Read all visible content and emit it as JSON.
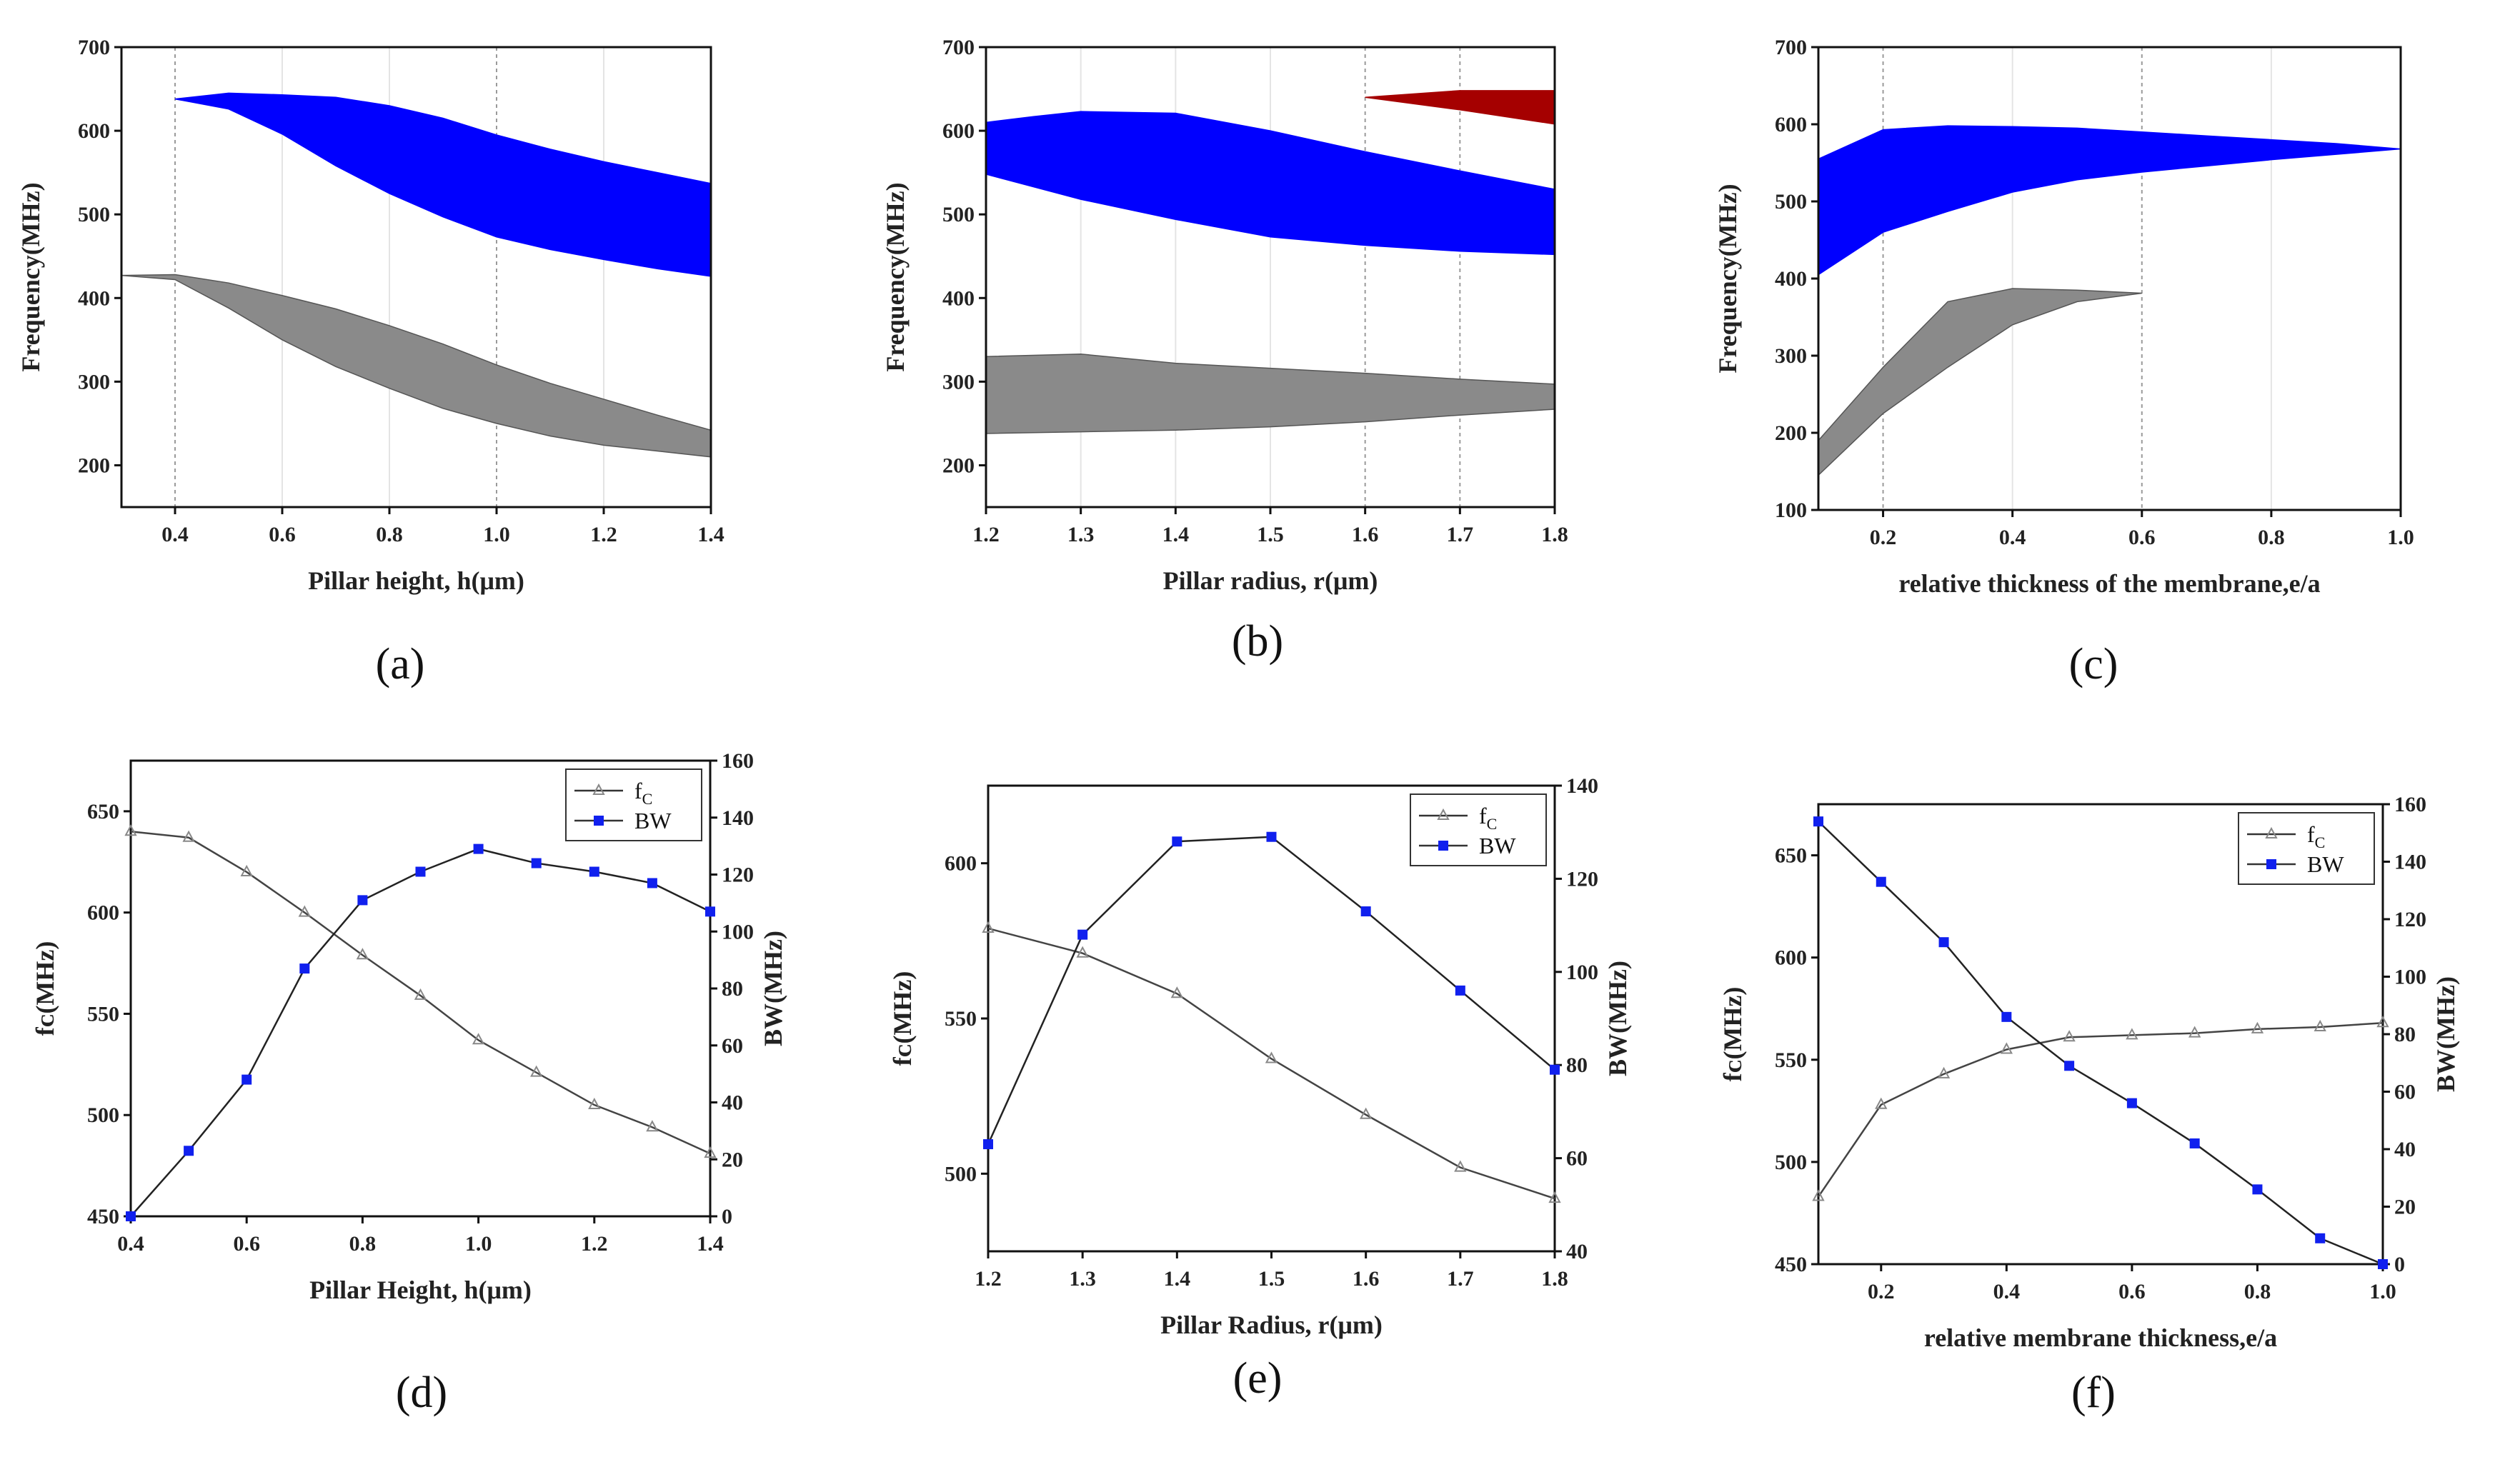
{
  "captions": [
    "(a)",
    "(b)",
    "(c)",
    "(d)",
    "(e)",
    "(f)"
  ],
  "colors": {
    "blue_band": "#0000ff",
    "gray_band": "#8a8a8a",
    "red_band": "#a50000",
    "blue_marker": "#1020ee",
    "gray_marker": "#888888"
  },
  "chart_data": [
    {
      "panel": "a",
      "type": "area",
      "caption": "(a)",
      "xlabel": "Pillar height, h(μm)",
      "ylabel": "Frequency(MHz)",
      "xlim": [
        0.3,
        1.4
      ],
      "ylim": [
        150,
        700
      ],
      "xticks": [
        "0.4",
        "0.6",
        "0.8",
        "1.0",
        "1.2",
        "1.4"
      ],
      "yticks": [
        "200",
        "300",
        "400",
        "500",
        "600",
        "700"
      ],
      "gridlines_x": [
        0.4,
        1.0
      ],
      "bands": [
        {
          "color": "blue",
          "upper": [
            [
              0.4,
              638
            ],
            [
              0.5,
              645
            ],
            [
              0.6,
              643
            ],
            [
              0.7,
              640
            ],
            [
              0.8,
              630
            ],
            [
              0.9,
              615
            ],
            [
              1.0,
              595
            ],
            [
              1.1,
              578
            ],
            [
              1.2,
              563
            ],
            [
              1.3,
              550
            ],
            [
              1.4,
              537
            ]
          ],
          "lower": [
            [
              0.4,
              638
            ],
            [
              0.5,
              626
            ],
            [
              0.6,
              596
            ],
            [
              0.7,
              558
            ],
            [
              0.8,
              525
            ],
            [
              0.9,
              497
            ],
            [
              1.0,
              473
            ],
            [
              1.1,
              458
            ],
            [
              1.2,
              446
            ],
            [
              1.3,
              435
            ],
            [
              1.4,
              426
            ]
          ]
        },
        {
          "color": "gray",
          "upper": [
            [
              0.3,
              427
            ],
            [
              0.4,
              428
            ],
            [
              0.5,
              418
            ],
            [
              0.6,
              403
            ],
            [
              0.7,
              387
            ],
            [
              0.8,
              367
            ],
            [
              0.9,
              345
            ],
            [
              1.0,
              320
            ],
            [
              1.1,
              298
            ],
            [
              1.2,
              279
            ],
            [
              1.3,
              260
            ],
            [
              1.4,
              242
            ]
          ],
          "lower": [
            [
              0.3,
              427
            ],
            [
              0.4,
              422
            ],
            [
              0.5,
              388
            ],
            [
              0.6,
              350
            ],
            [
              0.7,
              318
            ],
            [
              0.8,
              292
            ],
            [
              0.9,
              268
            ],
            [
              1.0,
              250
            ],
            [
              1.1,
              235
            ],
            [
              1.2,
              224
            ],
            [
              1.3,
              217
            ],
            [
              1.4,
              210
            ]
          ]
        }
      ]
    },
    {
      "panel": "b",
      "type": "area",
      "caption": "(b)",
      "xlabel": "Pillar radius, r(μm)",
      "ylabel": "Frequency(MHz)",
      "xlim": [
        1.2,
        1.8
      ],
      "ylim": [
        150,
        700
      ],
      "xticks": [
        "1.2",
        "1.3",
        "1.4",
        "1.5",
        "1.6",
        "1.7",
        "1.8"
      ],
      "yticks": [
        "200",
        "300",
        "400",
        "500",
        "600",
        "700"
      ],
      "gridlines_x": [
        1.6,
        1.7
      ],
      "bands": [
        {
          "color": "blue",
          "upper": [
            [
              1.2,
              610
            ],
            [
              1.25,
              617
            ],
            [
              1.3,
              623
            ],
            [
              1.4,
              621
            ],
            [
              1.5,
              600
            ],
            [
              1.6,
              575
            ],
            [
              1.7,
              552
            ],
            [
              1.8,
              530
            ]
          ],
          "lower": [
            [
              1.2,
              548
            ],
            [
              1.3,
              518
            ],
            [
              1.4,
              494
            ],
            [
              1.5,
              473
            ],
            [
              1.6,
              463
            ],
            [
              1.7,
              456
            ],
            [
              1.8,
              452
            ]
          ]
        },
        {
          "color": "gray",
          "upper": [
            [
              1.2,
              330
            ],
            [
              1.3,
              333
            ],
            [
              1.4,
              322
            ],
            [
              1.5,
              316
            ],
            [
              1.6,
              310
            ],
            [
              1.7,
              303
            ],
            [
              1.8,
              297
            ]
          ],
          "lower": [
            [
              1.2,
              238
            ],
            [
              1.3,
              240
            ],
            [
              1.4,
              242
            ],
            [
              1.5,
              246
            ],
            [
              1.6,
              252
            ],
            [
              1.7,
              260
            ],
            [
              1.8,
              267
            ]
          ]
        },
        {
          "color": "red",
          "upper": [
            [
              1.6,
              640
            ],
            [
              1.7,
              648
            ],
            [
              1.8,
              648
            ]
          ],
          "lower": [
            [
              1.6,
              640
            ],
            [
              1.7,
              625
            ],
            [
              1.8,
              608
            ]
          ]
        }
      ]
    },
    {
      "panel": "c",
      "type": "area",
      "caption": "(c)",
      "xlabel": "relative thickness of the membrane,e/a",
      "ylabel": "Frequency(MHz)",
      "xlim": [
        0.1,
        1.0
      ],
      "ylim": [
        100,
        700
      ],
      "xticks": [
        "0.2",
        "0.4",
        "0.6",
        "0.8",
        "1.0"
      ],
      "yticks": [
        "100",
        "200",
        "300",
        "400",
        "500",
        "600",
        "700"
      ],
      "gridlines_x": [
        0.2,
        0.6
      ],
      "bands": [
        {
          "color": "blue",
          "upper": [
            [
              0.1,
              555
            ],
            [
              0.2,
              593
            ],
            [
              0.3,
              598
            ],
            [
              0.4,
              597
            ],
            [
              0.5,
              595
            ],
            [
              0.6,
              590
            ],
            [
              0.7,
              585
            ],
            [
              0.8,
              580
            ],
            [
              0.9,
              575
            ],
            [
              1.0,
              568
            ]
          ],
          "lower": [
            [
              0.1,
              405
            ],
            [
              0.2,
              460
            ],
            [
              0.3,
              487
            ],
            [
              0.4,
              512
            ],
            [
              0.5,
              528
            ],
            [
              0.6,
              538
            ],
            [
              0.7,
              546
            ],
            [
              0.8,
              554
            ],
            [
              0.9,
              561
            ],
            [
              1.0,
              568
            ]
          ]
        },
        {
          "color": "gray",
          "upper": [
            [
              0.1,
              190
            ],
            [
              0.2,
              285
            ],
            [
              0.3,
              370
            ],
            [
              0.4,
              387
            ],
            [
              0.5,
              385
            ],
            [
              0.6,
              381
            ]
          ],
          "lower": [
            [
              0.1,
              145
            ],
            [
              0.2,
              225
            ],
            [
              0.3,
              285
            ],
            [
              0.4,
              340
            ],
            [
              0.5,
              370
            ],
            [
              0.6,
              381
            ]
          ]
        }
      ]
    },
    {
      "panel": "d",
      "type": "line",
      "caption": "(d)",
      "xlabel": "Pillar Height, h(μm)",
      "ylabel": "fᴄ(MHz)",
      "y2label": "BW(MHz)",
      "xlim": [
        0.4,
        1.4
      ],
      "ylim": [
        450,
        675
      ],
      "y2lim": [
        0,
        160
      ],
      "xticks": [
        "0.4",
        "0.6",
        "0.8",
        "1.0",
        "1.2",
        "1.4"
      ],
      "yticks": [
        "450",
        "500",
        "550",
        "600",
        "650"
      ],
      "y2ticks": [
        "0",
        "20",
        "40",
        "60",
        "80",
        "100",
        "120",
        "140",
        "160"
      ],
      "legend": [
        "fC",
        "BW"
      ],
      "legend_position": "top-right",
      "x": [
        0.4,
        0.5,
        0.6,
        0.7,
        0.8,
        0.9,
        1.0,
        1.1,
        1.2,
        1.3,
        1.4
      ],
      "series": [
        {
          "name": "fC",
          "axis": "left",
          "values": [
            640,
            637,
            620,
            600,
            579,
            559,
            537,
            521,
            505,
            494,
            481
          ]
        },
        {
          "name": "BW",
          "axis": "right",
          "values": [
            0,
            23,
            48,
            87,
            111,
            121,
            129,
            124,
            121,
            117,
            107
          ]
        }
      ]
    },
    {
      "panel": "e",
      "type": "line",
      "caption": "(e)",
      "xlabel": "Pillar Radius, r(μm)",
      "ylabel": "fᴄ(MHz)",
      "y2label": "BW(MHz)",
      "xlim": [
        1.2,
        1.8
      ],
      "ylim": [
        475,
        625
      ],
      "y2lim": [
        40,
        140
      ],
      "xticks": [
        "1.2",
        "1.3",
        "1.4",
        "1.5",
        "1.6",
        "1.7",
        "1.8"
      ],
      "yticks": [
        "500",
        "550",
        "600"
      ],
      "y2ticks": [
        "40",
        "60",
        "80",
        "100",
        "120",
        "140"
      ],
      "legend": [
        "fC",
        "BW"
      ],
      "legend_position": "top-right",
      "x": [
        1.2,
        1.3,
        1.4,
        1.5,
        1.6,
        1.7,
        1.8
      ],
      "series": [
        {
          "name": "fC",
          "axis": "left",
          "values": [
            579,
            571,
            558,
            537,
            519,
            502,
            492
          ]
        },
        {
          "name": "BW",
          "axis": "right",
          "values": [
            63,
            108,
            128,
            129,
            113,
            96,
            79
          ]
        }
      ]
    },
    {
      "panel": "f",
      "type": "line",
      "caption": "(f)",
      "xlabel": "relative membrane thickness,e/a",
      "ylabel": "fᴄ(MHz)",
      "y2label": "BW(MHz)",
      "xlim": [
        0.1,
        1.0
      ],
      "ylim": [
        450,
        675
      ],
      "y2lim": [
        0,
        160
      ],
      "xticks": [
        "0.2",
        "0.4",
        "0.6",
        "0.8",
        "1.0"
      ],
      "yticks": [
        "450",
        "500",
        "550",
        "600",
        "650"
      ],
      "y2ticks": [
        "0",
        "20",
        "40",
        "60",
        "80",
        "100",
        "120",
        "140",
        "160"
      ],
      "legend": [
        "fC",
        "BW"
      ],
      "legend_position": "top-right",
      "x": [
        0.1,
        0.2,
        0.3,
        0.4,
        0.5,
        0.6,
        0.7,
        0.8,
        0.9,
        1.0
      ],
      "series": [
        {
          "name": "fC",
          "axis": "left",
          "values": [
            483,
            528,
            543,
            555,
            561,
            562,
            563,
            565,
            566,
            568
          ]
        },
        {
          "name": "BW",
          "axis": "right",
          "values": [
            154,
            133,
            112,
            86,
            69,
            56,
            42,
            26,
            9,
            0
          ]
        }
      ]
    }
  ]
}
